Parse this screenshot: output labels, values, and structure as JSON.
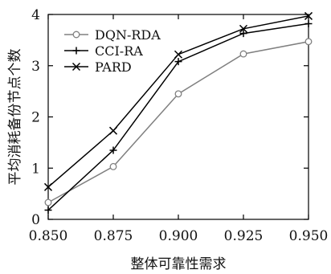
{
  "chart_data": {
    "type": "line",
    "xlabel": "整体可靠性需求",
    "ylabel": "平均消耗备份节点个数",
    "x": [
      0.85,
      0.875,
      0.9,
      0.925,
      0.95
    ],
    "x_tick_labels": [
      "0.850",
      "0.875",
      "0.900",
      "0.925",
      "0.950"
    ],
    "y_ticks": [
      0,
      1,
      2,
      3,
      4
    ],
    "xlim": [
      0.85,
      0.95
    ],
    "ylim": [
      0,
      4
    ],
    "grid": false,
    "legend_position": "top-left",
    "series": [
      {
        "name": "DQN-RDA",
        "marker": "circle",
        "color": "#808080",
        "values": [
          0.33,
          1.03,
          2.45,
          3.23,
          3.47
        ]
      },
      {
        "name": "CCI-RA",
        "marker": "plus",
        "color": "#000000",
        "values": [
          0.18,
          1.35,
          3.08,
          3.63,
          3.82
        ]
      },
      {
        "name": "PARD",
        "marker": "cross",
        "color": "#000000",
        "values": [
          0.63,
          1.73,
          3.22,
          3.72,
          3.97
        ]
      }
    ]
  }
}
